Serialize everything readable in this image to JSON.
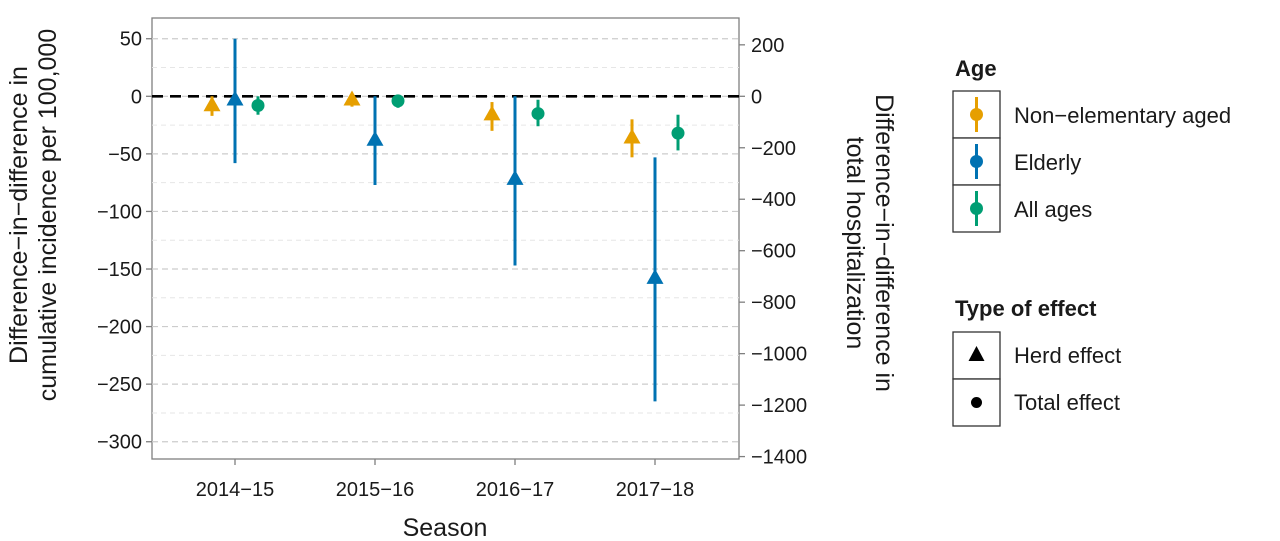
{
  "chart_data": {
    "type": "scatter",
    "subtype": "point-with-error-bars",
    "x_title": "Season",
    "y_left_title": [
      "Difference−in−difference in",
      "cumulative incidence per 100,000"
    ],
    "y_right_title": [
      "Difference−in−difference in",
      "total hospitalization"
    ],
    "categories": [
      "2014−15",
      "2015−16",
      "2016−17",
      "2017−18"
    ],
    "y_left": {
      "range": [
        -315,
        68
      ],
      "ticks": [
        50,
        0,
        -50,
        -100,
        -150,
        -200,
        -250,
        -300
      ],
      "tick_labels": [
        "50",
        "0",
        "−50",
        "−100",
        "−150",
        "−200",
        "−250",
        "−300"
      ]
    },
    "y_right": {
      "ticks": [
        200,
        0,
        -200,
        -400,
        -600,
        -800,
        -1000,
        -1200,
        -1400
      ],
      "tick_labels": [
        "200",
        "0",
        "−200",
        "−400",
        "−600",
        "−800",
        "−1000",
        "−1200",
        "−1400"
      ],
      "left_units_per_right_unit": 0.2235
    },
    "reference_line": {
      "y": 0,
      "style": "dashed"
    },
    "grid": true,
    "series": [
      {
        "name": "Non−elementary aged",
        "color": "#E69F00",
        "effect": "Herd effect",
        "values": [
          -8,
          -3,
          -16,
          -36
        ],
        "lower": [
          -17,
          -9,
          -30,
          -53
        ],
        "upper": [
          0,
          3,
          -5,
          -20
        ]
      },
      {
        "name": "Elderly",
        "color": "#0072B2",
        "effect": "Herd effect",
        "values": [
          -3,
          -38,
          -72,
          -158
        ],
        "lower": [
          -58,
          -77,
          -147,
          -265
        ],
        "upper": [
          50,
          0,
          0,
          -53
        ]
      },
      {
        "name": "All ages",
        "color": "#009E73",
        "effect": "Total effect",
        "values": [
          -8,
          -4,
          -15,
          -32
        ],
        "lower": [
          -16,
          -10,
          -26,
          -47
        ],
        "upper": [
          0,
          1,
          -3,
          -16
        ]
      }
    ],
    "legend": {
      "placement": "right",
      "age": {
        "title": "Age",
        "items": [
          {
            "label": "Non−elementary aged",
            "color": "#E69F00"
          },
          {
            "label": "Elderly",
            "color": "#0072B2"
          },
          {
            "label": "All ages",
            "color": "#009E73"
          }
        ]
      },
      "effect": {
        "title": "Type of effect",
        "items": [
          {
            "label": "Herd effect",
            "shape": "triangle"
          },
          {
            "label": "Total effect",
            "shape": "circle"
          }
        ]
      }
    }
  }
}
